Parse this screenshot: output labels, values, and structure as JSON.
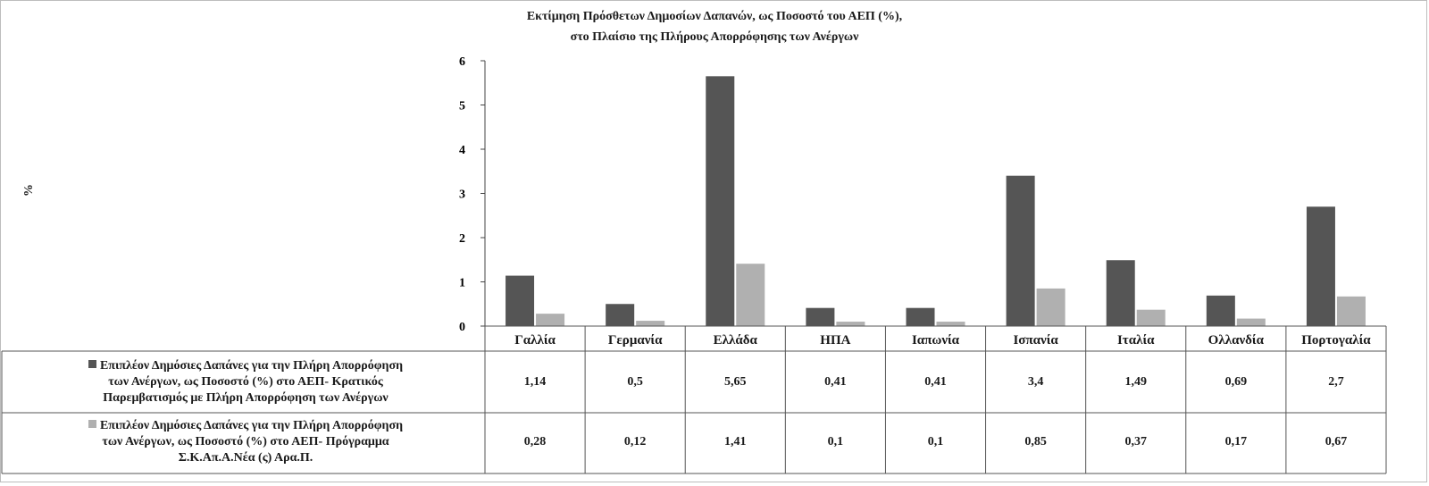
{
  "chart_data": {
    "type": "bar",
    "title_line1": "Εκτίμηση Πρόσθετων Δημοσίων Δαπανών, ως Ποσοστό του ΑΕΠ (%),",
    "title_line2": "στο Πλαίσιο της Πλήρους Απορρόφησης των Ανέργων",
    "ylabel": "%",
    "ylim": [
      0,
      6
    ],
    "yticks": [
      "0",
      "1",
      "2",
      "3",
      "4",
      "5",
      "6"
    ],
    "categories": [
      "Γαλλία",
      "Γερμανία",
      "Ελλάδα",
      "ΗΠΑ",
      "Ιαπωνία",
      "Ισπανία",
      "Ιταλία",
      "Ολλανδία",
      "Πορτογαλία"
    ],
    "series": [
      {
        "name_lines": [
          "Επιπλέον Δημόσιες Δαπάνες για την  Πλήρη Απορρόφηση",
          "των Ανέργων, ως Ποσοστό (%) στο ΑΕΠ- Κρατικός",
          "Παρεμβατισμός με Πλήρη Απορρόφηση των Ανέργων"
        ],
        "color": "#555555",
        "values": [
          1.14,
          0.5,
          5.65,
          0.41,
          0.41,
          3.4,
          1.49,
          0.69,
          2.7
        ],
        "value_labels": [
          "1,14",
          "0,5",
          "5,65",
          "0,41",
          "0,41",
          "3,4",
          "1,49",
          "0,69",
          "2,7"
        ]
      },
      {
        "name_lines": [
          "Επιπλέον Δημόσιες Δαπάνες για την  Πλήρη Απορρόφηση",
          "των Ανέργων, ως Ποσοστό (%) στο ΑΕΠ- Πρόγραμμα",
          "Σ.Κ.Απ.Α.Νέα (ς) Αρα.Π."
        ],
        "color": "#b0b0b0",
        "values": [
          0.28,
          0.12,
          1.41,
          0.1,
          0.1,
          0.85,
          0.37,
          0.17,
          0.67
        ],
        "value_labels": [
          "0,28",
          "0,12",
          "1,41",
          "0,1",
          "0,1",
          "0,85",
          "0,37",
          "0,17",
          "0,67"
        ]
      }
    ],
    "grid": false,
    "legend_placement": "left of data table"
  }
}
